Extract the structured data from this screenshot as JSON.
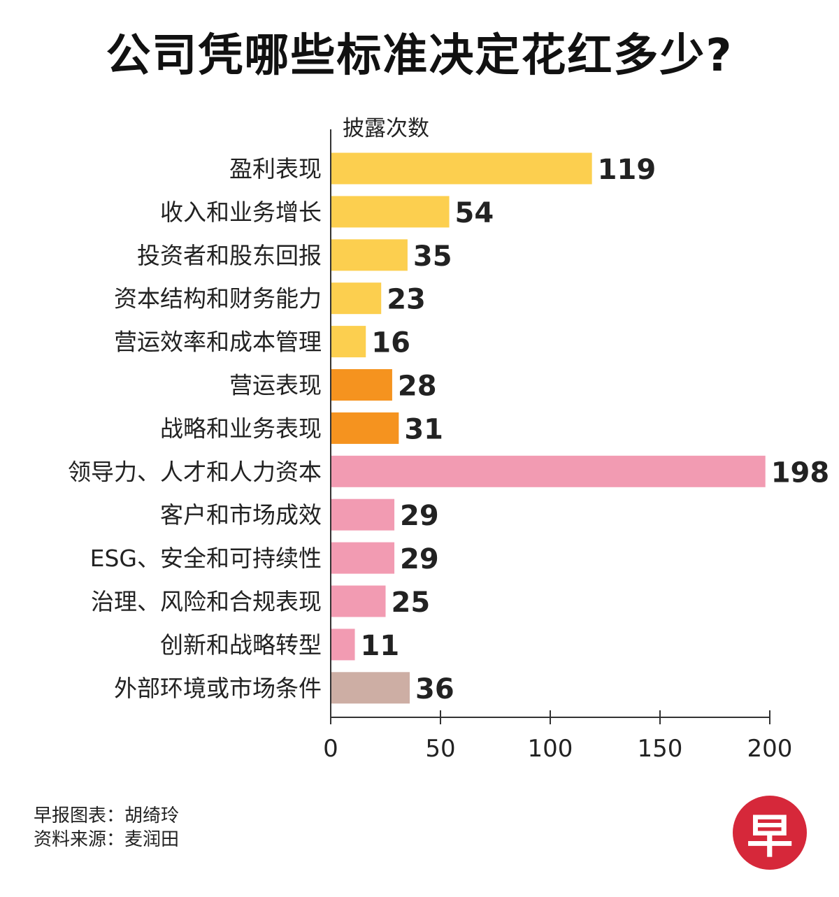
{
  "title": "公司凭哪些标准决定花红多少?",
  "chart_data": {
    "type": "bar",
    "orientation": "horizontal",
    "axis_title": "披露次数",
    "categories": [
      "盈利表现",
      "收入和业务增长",
      "投资者和股东回报",
      "资本结构和财务能力",
      "营运效率和成本管理",
      "营运表现",
      "战略和业务表现",
      "领导力、人才和人力资本",
      "客户和市场成效",
      "ESG、安全和可持续性",
      "治理、风险和合规表现",
      "创新和战略转型",
      "外部环境或市场条件"
    ],
    "values": [
      119,
      54,
      35,
      23,
      16,
      28,
      31,
      198,
      29,
      29,
      25,
      11,
      36
    ],
    "bar_colors": [
      "#fccf4f",
      "#fccf4f",
      "#fccf4f",
      "#fccf4f",
      "#fccf4f",
      "#f5931f",
      "#f5931f",
      "#f29bb2",
      "#f29bb2",
      "#f29bb2",
      "#f29bb2",
      "#f29bb2",
      "#cdaea4"
    ],
    "xlim": [
      0,
      200
    ],
    "xticks": [
      0,
      50,
      100,
      150,
      200
    ],
    "grid": false,
    "legend": "none"
  },
  "credits": {
    "graphic": "早报图表：胡绮玲",
    "source": "资料来源：麦润田"
  },
  "logo": {
    "text": "早",
    "color": "#d6283a"
  }
}
